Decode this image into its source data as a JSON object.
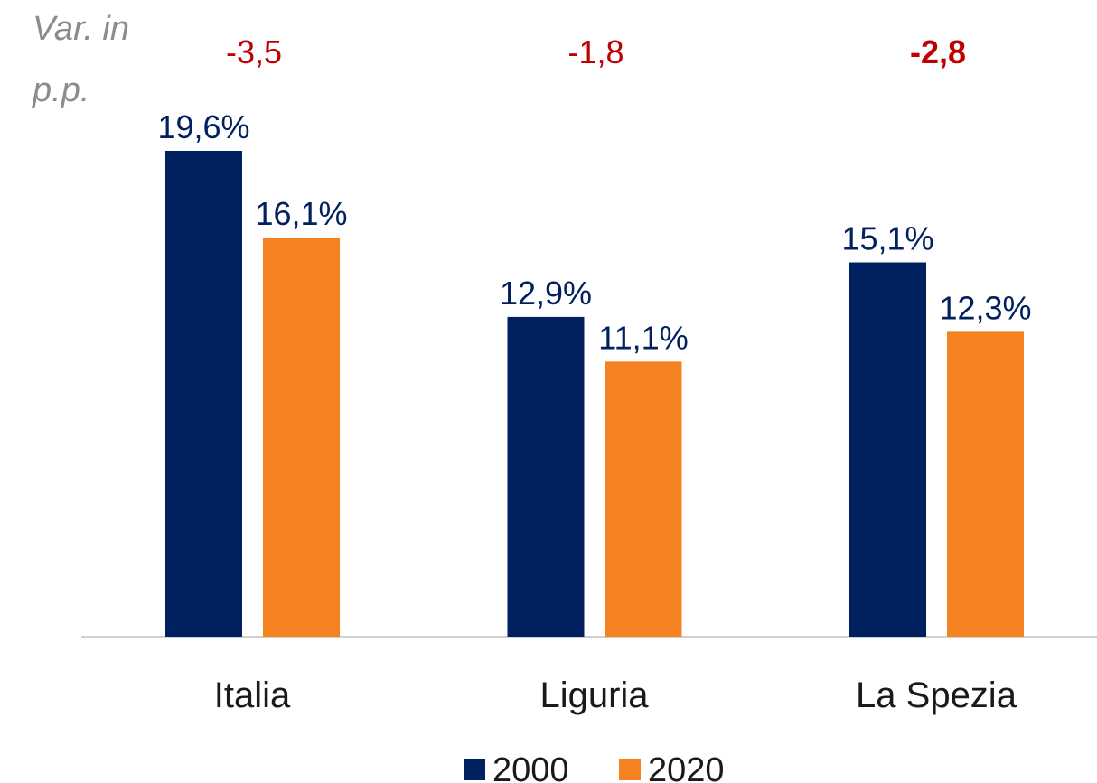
{
  "chart_data": {
    "type": "bar",
    "note_lines": [
      "Var. in",
      "p.p."
    ],
    "categories": [
      "Italia",
      "Liguria",
      "La Spezia"
    ],
    "series": [
      {
        "name": "2000",
        "color": "#002060",
        "values": [
          19.6,
          12.9,
          15.1
        ],
        "value_labels": [
          "19,6%",
          "12,9%",
          "15,1%"
        ]
      },
      {
        "name": "2020",
        "color": "#f58220",
        "values": [
          16.1,
          11.1,
          12.3
        ],
        "value_labels": [
          "16,1%",
          "11,1%",
          "12,3%"
        ]
      }
    ],
    "differences": {
      "values": [
        -3.5,
        -1.8,
        -2.8
      ],
      "labels": [
        "-3,5",
        "-1,8",
        "-2,8"
      ],
      "color": "#c00000",
      "bold": [
        false,
        false,
        true
      ]
    },
    "legend": "bottom"
  }
}
